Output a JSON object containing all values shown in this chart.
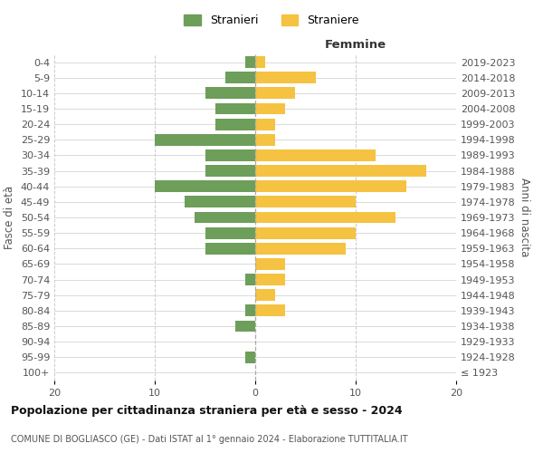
{
  "age_groups": [
    "100+",
    "95-99",
    "90-94",
    "85-89",
    "80-84",
    "75-79",
    "70-74",
    "65-69",
    "60-64",
    "55-59",
    "50-54",
    "45-49",
    "40-44",
    "35-39",
    "30-34",
    "25-29",
    "20-24",
    "15-19",
    "10-14",
    "5-9",
    "0-4"
  ],
  "birth_years": [
    "≤ 1923",
    "1924-1928",
    "1929-1933",
    "1934-1938",
    "1939-1943",
    "1944-1948",
    "1949-1953",
    "1954-1958",
    "1959-1963",
    "1964-1968",
    "1969-1973",
    "1974-1978",
    "1979-1983",
    "1984-1988",
    "1989-1993",
    "1994-1998",
    "1999-2003",
    "2004-2008",
    "2009-2013",
    "2014-2018",
    "2019-2023"
  ],
  "stranieri": [
    0,
    1,
    0,
    2,
    1,
    0,
    1,
    0,
    5,
    5,
    6,
    7,
    10,
    5,
    5,
    10,
    4,
    4,
    5,
    3,
    1
  ],
  "straniere": [
    0,
    0,
    0,
    0,
    3,
    2,
    3,
    3,
    9,
    10,
    14,
    10,
    15,
    17,
    12,
    2,
    2,
    3,
    4,
    6,
    1
  ],
  "color_stranieri": "#6d9e5a",
  "color_straniere": "#f5c242",
  "xlim": 20,
  "title": "Popolazione per cittadinanza straniera per età e sesso - 2024",
  "subtitle": "COMUNE DI BOGLIASCO (GE) - Dati ISTAT al 1° gennaio 2024 - Elaborazione TUTTITALIA.IT",
  "ylabel_left": "Fasce di età",
  "ylabel_right": "Anni di nascita",
  "label_femmine": "Femmine",
  "legend_stranieri": "Stranieri",
  "legend_straniere": "Straniere",
  "background_color": "#ffffff",
  "grid_color": "#cccccc"
}
